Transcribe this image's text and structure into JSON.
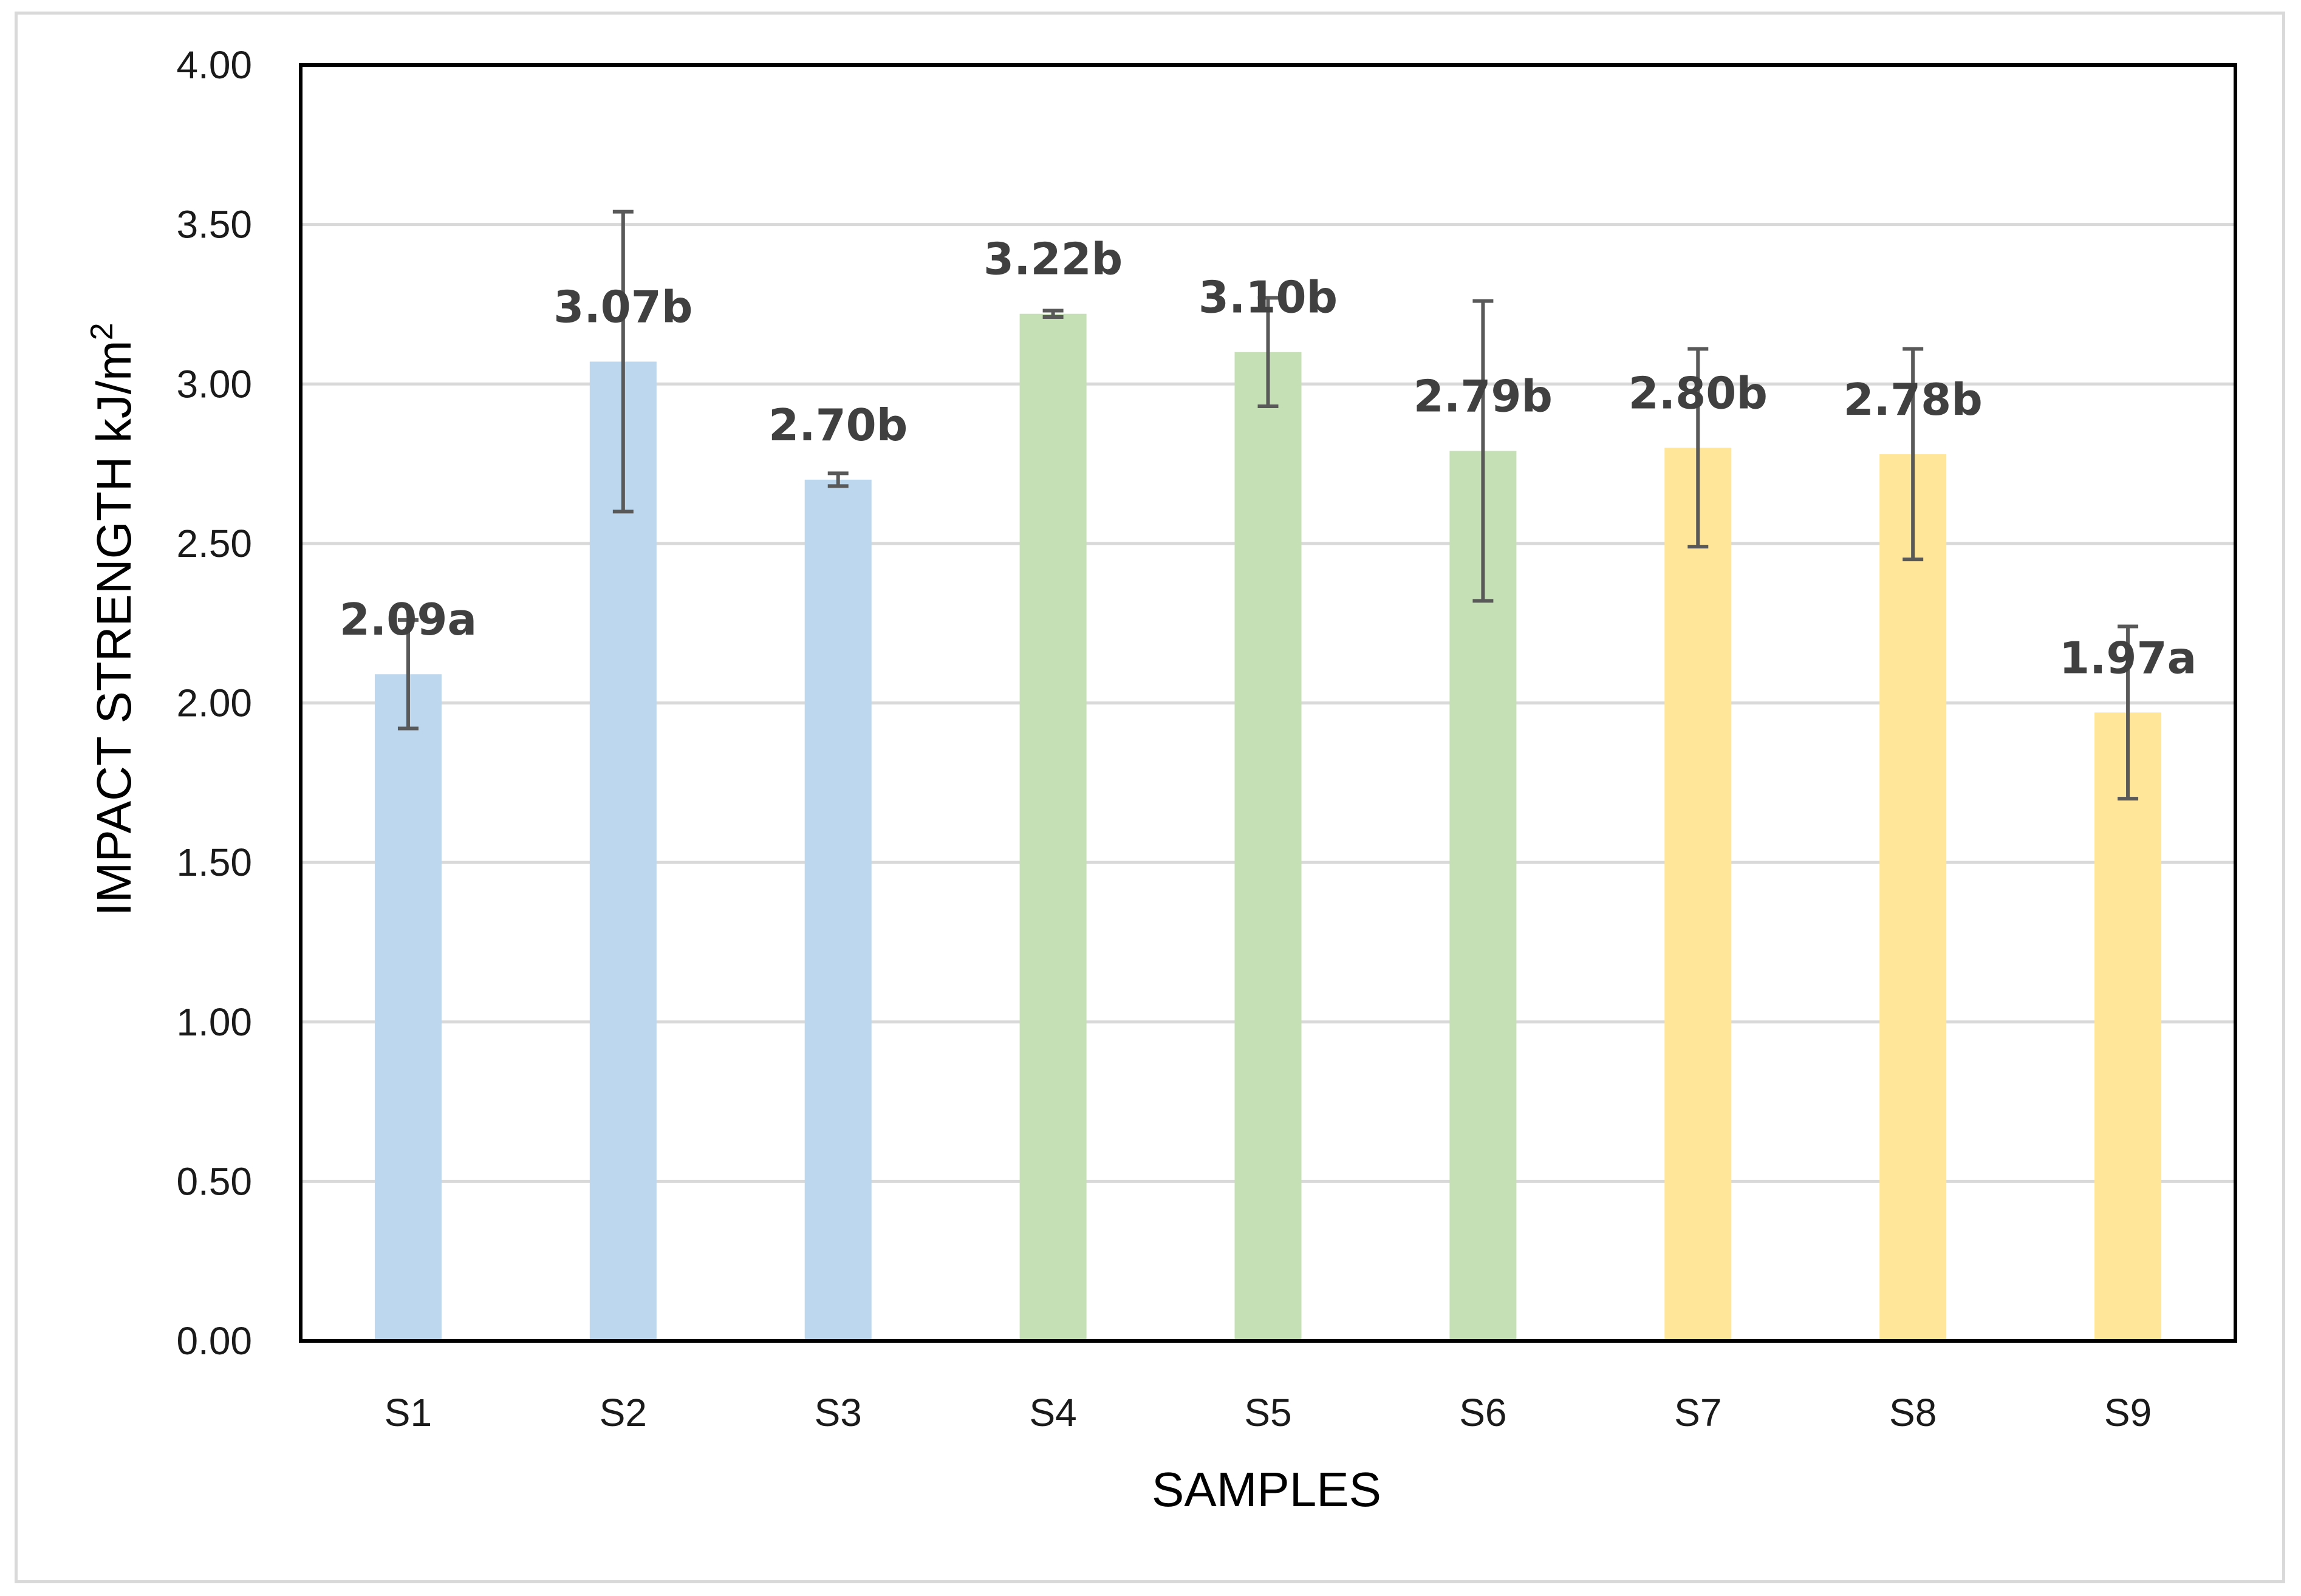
{
  "chart_data": {
    "type": "bar",
    "title": "",
    "xlabel": "SAMPLES",
    "ylabel": "IMPACT STRENGTH kJ/m",
    "ylabel_superscript": "2",
    "ylim": [
      0,
      4
    ],
    "ytick_step": 0.5,
    "ytick_labels": [
      "0.00",
      "0.50",
      "1.00",
      "1.50",
      "2.00",
      "2.50",
      "3.00",
      "3.50",
      "4.00"
    ],
    "grid": true,
    "legend": "none",
    "categories": [
      "S1",
      "S2",
      "S3",
      "S4",
      "S5",
      "S6",
      "S7",
      "S8",
      "S9"
    ],
    "values": [
      2.09,
      3.07,
      2.7,
      3.22,
      3.1,
      2.79,
      2.8,
      2.78,
      1.97
    ],
    "errors": [
      0.17,
      0.47,
      0.02,
      0.01,
      0.17,
      0.47,
      0.31,
      0.33,
      0.27
    ],
    "data_labels": [
      "2.09a",
      "3.07b",
      "2.70b",
      "3.22b",
      "3.10b",
      "2.79b",
      "2.80b",
      "2.78b",
      "1.97a"
    ],
    "bar_colors": [
      "#bdd7ee",
      "#bdd7ee",
      "#bdd7ee",
      "#c5e0b4",
      "#c5e0b4",
      "#c5e0b4",
      "#ffe699",
      "#ffe699",
      "#ffe699"
    ],
    "error_bar_color": "#595959",
    "gridline_color": "#d9d9d9",
    "axis_color": "#000000"
  }
}
